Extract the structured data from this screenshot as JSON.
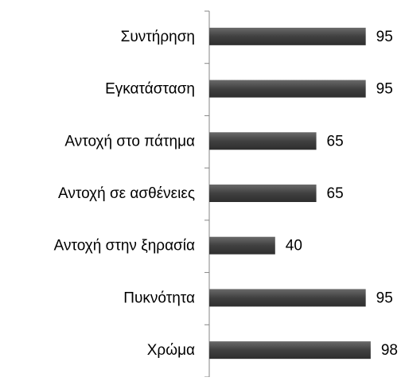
{
  "chart_data": {
    "type": "bar",
    "orientation": "horizontal",
    "categories": [
      "Συντήρηση",
      "Εγκατάσταση",
      "Αντοχή στο πάτημα",
      "Αντοχή σε ασθένειες",
      "Αντοχή στην ξηρασία",
      "Πυκνότητα",
      "Χρώμα"
    ],
    "values": [
      95,
      95,
      65,
      65,
      40,
      95,
      98
    ],
    "color": "#404040",
    "xlim": [
      0,
      100
    ]
  }
}
